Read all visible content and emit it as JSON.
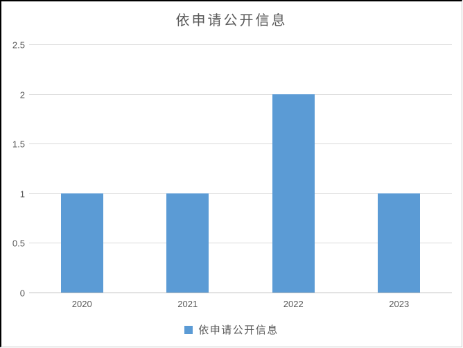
{
  "chart_data": {
    "type": "bar",
    "title": "依申请公开信息",
    "categories": [
      "2020",
      "2021",
      "2022",
      "2023"
    ],
    "series": [
      {
        "name": "依申请公开信息",
        "values": [
          1,
          1,
          2,
          1
        ]
      }
    ],
    "xlabel": "",
    "ylabel": "",
    "ylim": [
      0,
      2.5
    ],
    "yticks": [
      0,
      0.5,
      1,
      1.5,
      2,
      2.5
    ],
    "grid": true,
    "legend_position": "bottom",
    "colors": {
      "bar": "#5b9bd5",
      "gridline": "#d9d9d9",
      "axis_line": "#bfbfbf",
      "text": "#595959"
    },
    "legend": {
      "entries": [
        {
          "label": "依申请公开信息",
          "color": "#5b9bd5"
        }
      ]
    }
  }
}
